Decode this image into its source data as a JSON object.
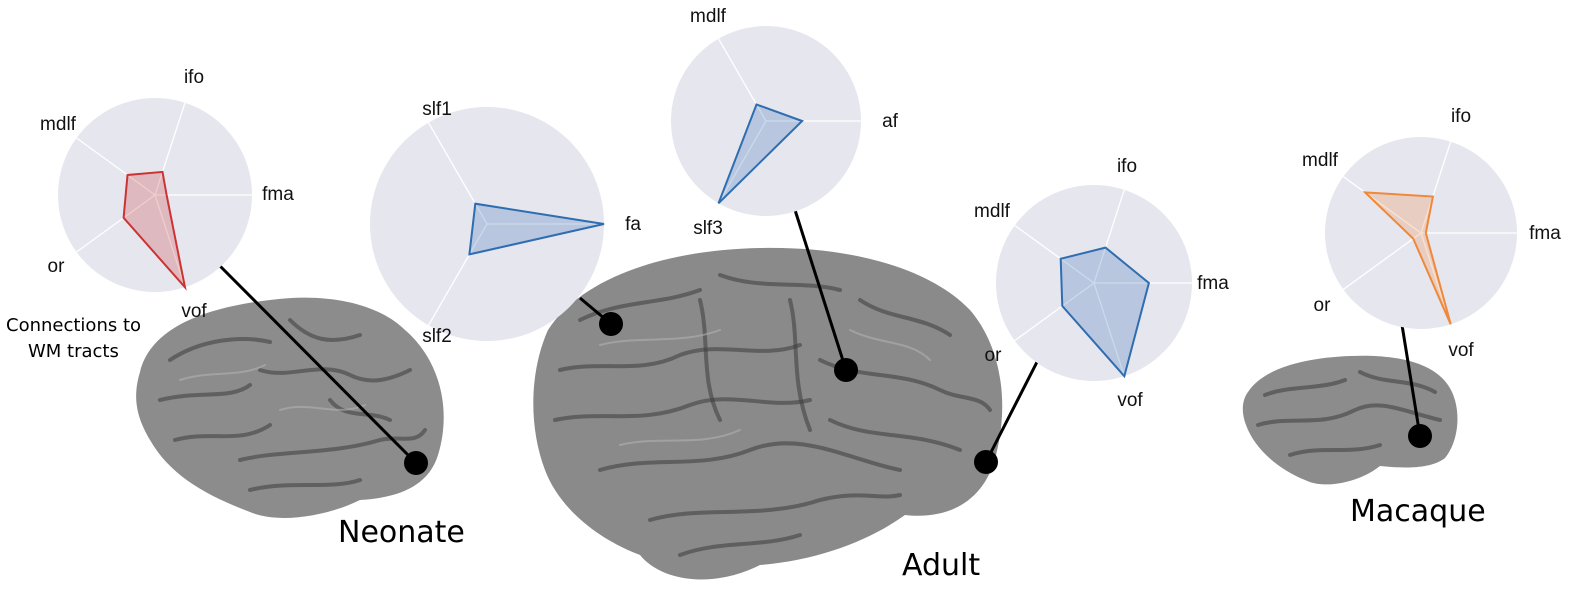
{
  "caption": {
    "line1": "Connections to",
    "line2": "WM tracts"
  },
  "brains": {
    "neonate": {
      "label": "Neonate"
    },
    "adult": {
      "label": "Adult"
    },
    "macaque": {
      "label": "Macaque"
    }
  },
  "colors": {
    "neonate": "#cc3333",
    "adult": "#2e6db0",
    "macaque": "#f0883a",
    "radar_bg": "#e6e6ef",
    "brain": "#8a8a8a"
  },
  "chart_data": [
    {
      "type": "radar",
      "id": "neonate",
      "axes": [
        {
          "label": "fma",
          "value": 0.12
        },
        {
          "label": "ifo",
          "value": 0.25
        },
        {
          "label": "mdlf",
          "value": 0.35
        },
        {
          "label": "or",
          "value": 0.4
        },
        {
          "label": "vof",
          "value": 1.0
        }
      ]
    },
    {
      "type": "radar",
      "id": "adult-1",
      "axes": [
        {
          "label": "fa",
          "value": 1.0
        },
        {
          "label": "slf1",
          "value": 0.2
        },
        {
          "label": "slf2",
          "value": 0.3
        }
      ]
    },
    {
      "type": "radar",
      "id": "adult-2",
      "axes": [
        {
          "label": "af",
          "value": 0.38
        },
        {
          "label": "mdlf",
          "value": 0.2
        },
        {
          "label": "slf3",
          "value": 1.0
        }
      ]
    },
    {
      "type": "radar",
      "id": "adult-3",
      "axes": [
        {
          "label": "fma",
          "value": 0.56
        },
        {
          "label": "ifo",
          "value": 0.38
        },
        {
          "label": "mdlf",
          "value": 0.42
        },
        {
          "label": "or",
          "value": 0.4
        },
        {
          "label": "vof",
          "value": 1.0
        }
      ]
    },
    {
      "type": "radar",
      "id": "macaque",
      "axes": [
        {
          "label": "fma",
          "value": 0.05
        },
        {
          "label": "ifo",
          "value": 0.4
        },
        {
          "label": "mdlf",
          "value": 0.72
        },
        {
          "label": "or",
          "value": 0.1
        },
        {
          "label": "vof",
          "value": 1.0
        }
      ]
    }
  ]
}
